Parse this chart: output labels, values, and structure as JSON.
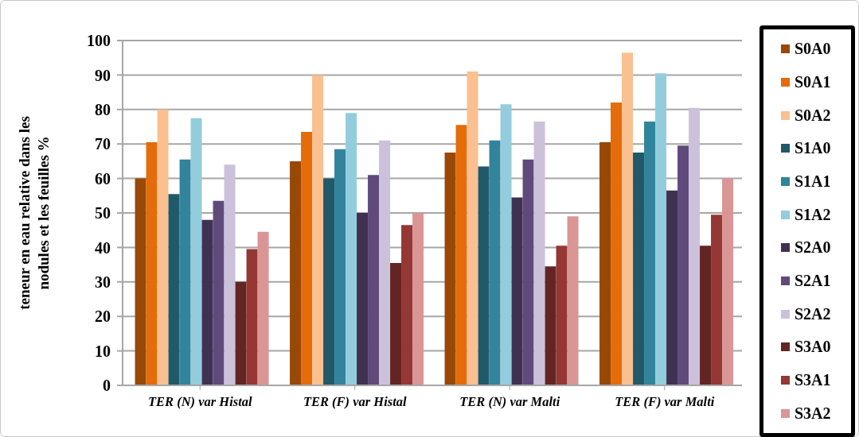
{
  "chart_data": {
    "type": "bar",
    "ylabel": "teneur en eau relative dans les\nnodules et les feuilles %",
    "categories": [
      "TER (N) var Histal",
      "TER (F) var Histal",
      "TER (N) var Malti",
      "TER (F) var Malti"
    ],
    "series": [
      {
        "name": "S0A0",
        "color": "#984807",
        "values": [
          60,
          65,
          67.5,
          70.5
        ]
      },
      {
        "name": "S0A1",
        "color": "#e46c0a",
        "values": [
          70.5,
          73.5,
          75.5,
          82
        ]
      },
      {
        "name": "S0A2",
        "color": "#fac090",
        "values": [
          80,
          90,
          91,
          96.5
        ]
      },
      {
        "name": "S1A0",
        "color": "#215968",
        "values": [
          55.5,
          60,
          63.5,
          67.5
        ]
      },
      {
        "name": "S1A1",
        "color": "#31849b",
        "values": [
          65.5,
          68.5,
          71,
          76.5
        ]
      },
      {
        "name": "S1A2",
        "color": "#93cddd",
        "values": [
          77.5,
          79,
          81.5,
          90.5
        ]
      },
      {
        "name": "S2A0",
        "color": "#403152",
        "values": [
          48,
          50,
          54.5,
          56.5
        ]
      },
      {
        "name": "S2A1",
        "color": "#604a7b",
        "values": [
          53.5,
          61,
          65.5,
          69.5
        ]
      },
      {
        "name": "S2A2",
        "color": "#ccc1da",
        "values": [
          64,
          71,
          76.5,
          80.5
        ]
      },
      {
        "name": "S3A0",
        "color": "#632523",
        "values": [
          30,
          35.5,
          34.5,
          40.5
        ]
      },
      {
        "name": "S3A1",
        "color": "#953735",
        "values": [
          39.5,
          46.5,
          40.5,
          49.5
        ]
      },
      {
        "name": "S3A2",
        "color": "#d99694",
        "values": [
          44.5,
          50,
          49,
          60
        ]
      }
    ],
    "ylim": [
      0,
      100
    ],
    "yticks": [
      0,
      10,
      20,
      30,
      40,
      50,
      60,
      70,
      80,
      90,
      100
    ],
    "grid": "y",
    "legend": "right"
  }
}
